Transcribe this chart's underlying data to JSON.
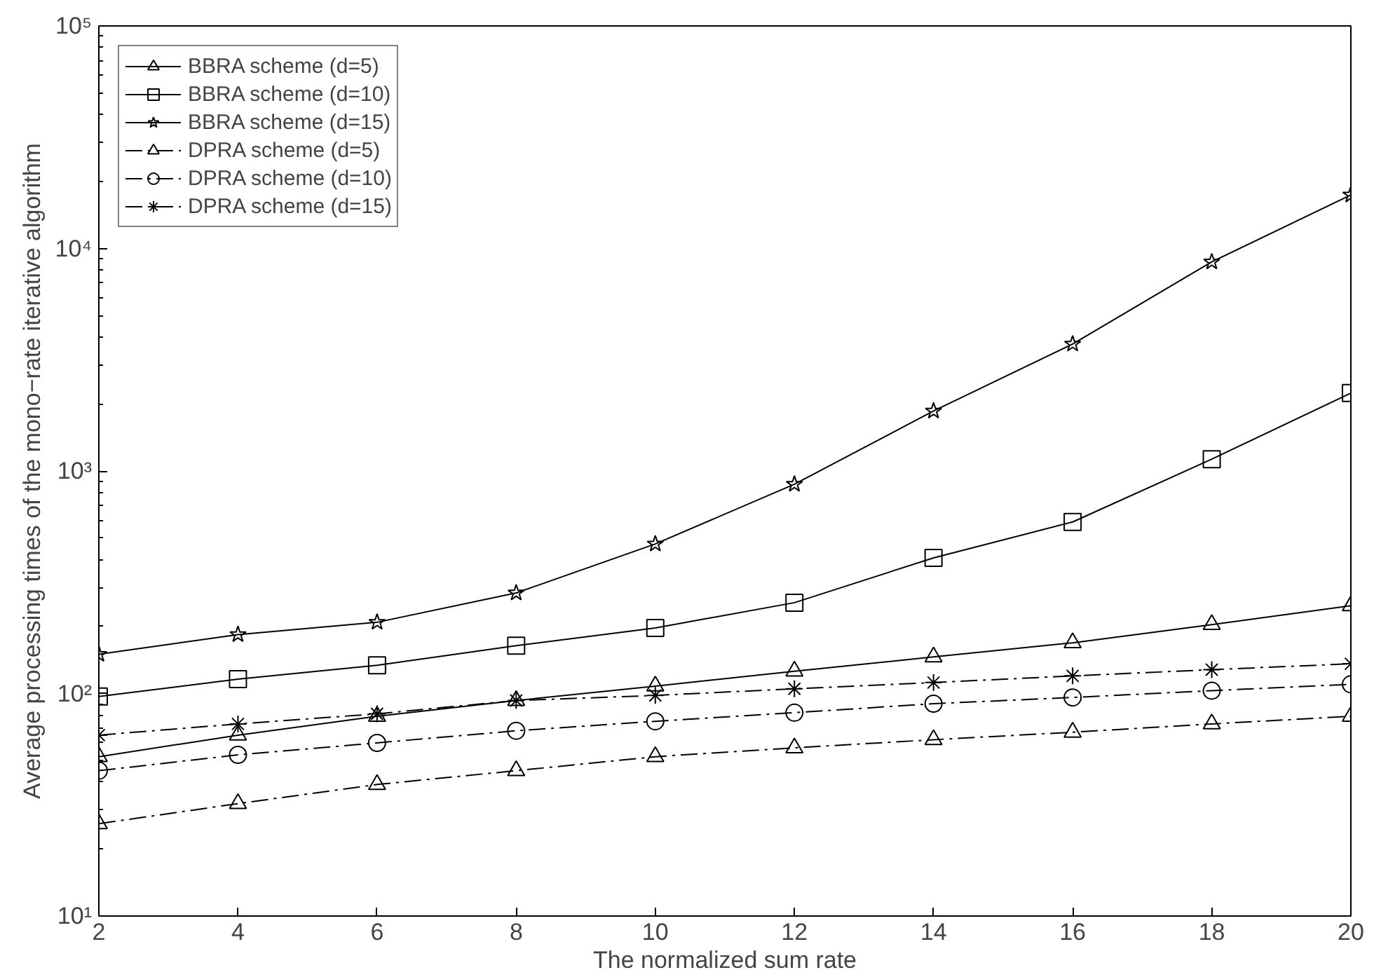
{
  "chart_data": {
    "type": "line",
    "xlabel": "The normalized sum rate",
    "ylabel": "Average processing times of the mono−rate iterative algorithm",
    "x": [
      2,
      4,
      6,
      8,
      10,
      12,
      14,
      16,
      18,
      20
    ],
    "xlim": [
      2,
      20
    ],
    "xticks": [
      2,
      4,
      6,
      8,
      10,
      12,
      14,
      16,
      18,
      20
    ],
    "log": "y",
    "ylim": [
      10,
      100000
    ],
    "yticks": [
      {
        "value": 10,
        "label": "10¹"
      },
      {
        "value": 100,
        "label": "10²"
      },
      {
        "value": 1000,
        "label": "10³"
      },
      {
        "value": 10000,
        "label": "10⁴"
      },
      {
        "value": 100000,
        "label": "10⁵"
      }
    ],
    "grid": false,
    "legend": "top left",
    "series": [
      {
        "name": "BBRA scheme (d=5)",
        "color": "#000000",
        "marker": "triangle",
        "line_style": "solid",
        "values": [
          52,
          65,
          79,
          93,
          108,
          126,
          146,
          169,
          204,
          248
        ]
      },
      {
        "name": "BBRA scheme (d=10)",
        "color": "#000000",
        "marker": "square",
        "line_style": "solid",
        "values": [
          97,
          116,
          134,
          164,
          197,
          256,
          407,
          590,
          1130,
          2240
        ]
      },
      {
        "name": "BBRA scheme (d=15)",
        "color": "#000000",
        "marker": "star",
        "line_style": "solid",
        "values": [
          150,
          184,
          209,
          283,
          470,
          872,
          1860,
          3720,
          8700,
          17400
        ]
      },
      {
        "name": "DPRA scheme (d=5)",
        "color": "#000000",
        "marker": "triangle",
        "line_style": "dashdot",
        "values": [
          26,
          32,
          39,
          45,
          52,
          57,
          62,
          67,
          73,
          79
        ]
      },
      {
        "name": "DPRA scheme (d=10)",
        "color": "#000000",
        "marker": "circle",
        "line_style": "dashdot",
        "values": [
          45,
          53,
          60,
          68,
          75,
          82,
          90,
          96,
          103,
          110
        ]
      },
      {
        "name": "DPRA scheme (d=15)",
        "color": "#000000",
        "marker": "cross",
        "line_style": "dashdot",
        "values": [
          65,
          73,
          81,
          93,
          98,
          105,
          112,
          120,
          128,
          136
        ]
      }
    ]
  }
}
